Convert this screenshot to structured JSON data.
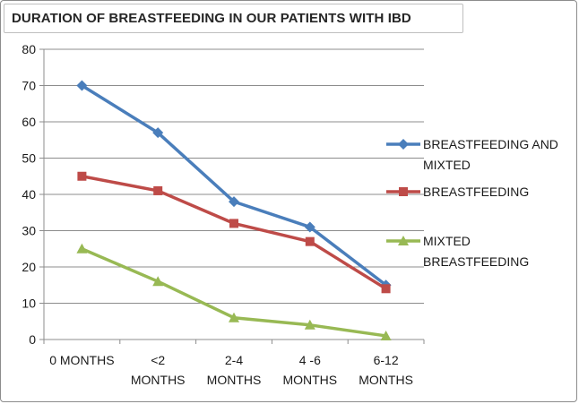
{
  "chart_data": {
    "type": "line",
    "title": "DURATION OF BREASTFEEDING IN OUR PATIENTS WITH IBD",
    "xlabel": "",
    "ylabel": "",
    "ylim": [
      0,
      80
    ],
    "yticks": [
      0,
      10,
      20,
      30,
      40,
      50,
      60,
      70,
      80
    ],
    "grid": true,
    "legend_position": "right",
    "categories": [
      [
        "0 MONTHS"
      ],
      [
        "<2",
        "MONTHS"
      ],
      [
        "2-4",
        "MONTHS"
      ],
      [
        "4 -6",
        "MONTHS"
      ],
      [
        "6-12",
        "MONTHS"
      ]
    ],
    "series": [
      {
        "name": [
          "BREASTFEEDING AND",
          "MIXTED"
        ],
        "color": "#4a7ebb",
        "marker": "diamond",
        "values": [
          70,
          57,
          38,
          31,
          15
        ]
      },
      {
        "name": [
          "BREASTFEEDING"
        ],
        "color": "#be4b48",
        "marker": "square",
        "values": [
          45,
          41,
          32,
          27,
          14
        ]
      },
      {
        "name": [
          "MIXTED",
          "BREASTFEEDING"
        ],
        "color": "#98b954",
        "marker": "triangle",
        "values": [
          25,
          16,
          6,
          4,
          1
        ]
      }
    ]
  }
}
